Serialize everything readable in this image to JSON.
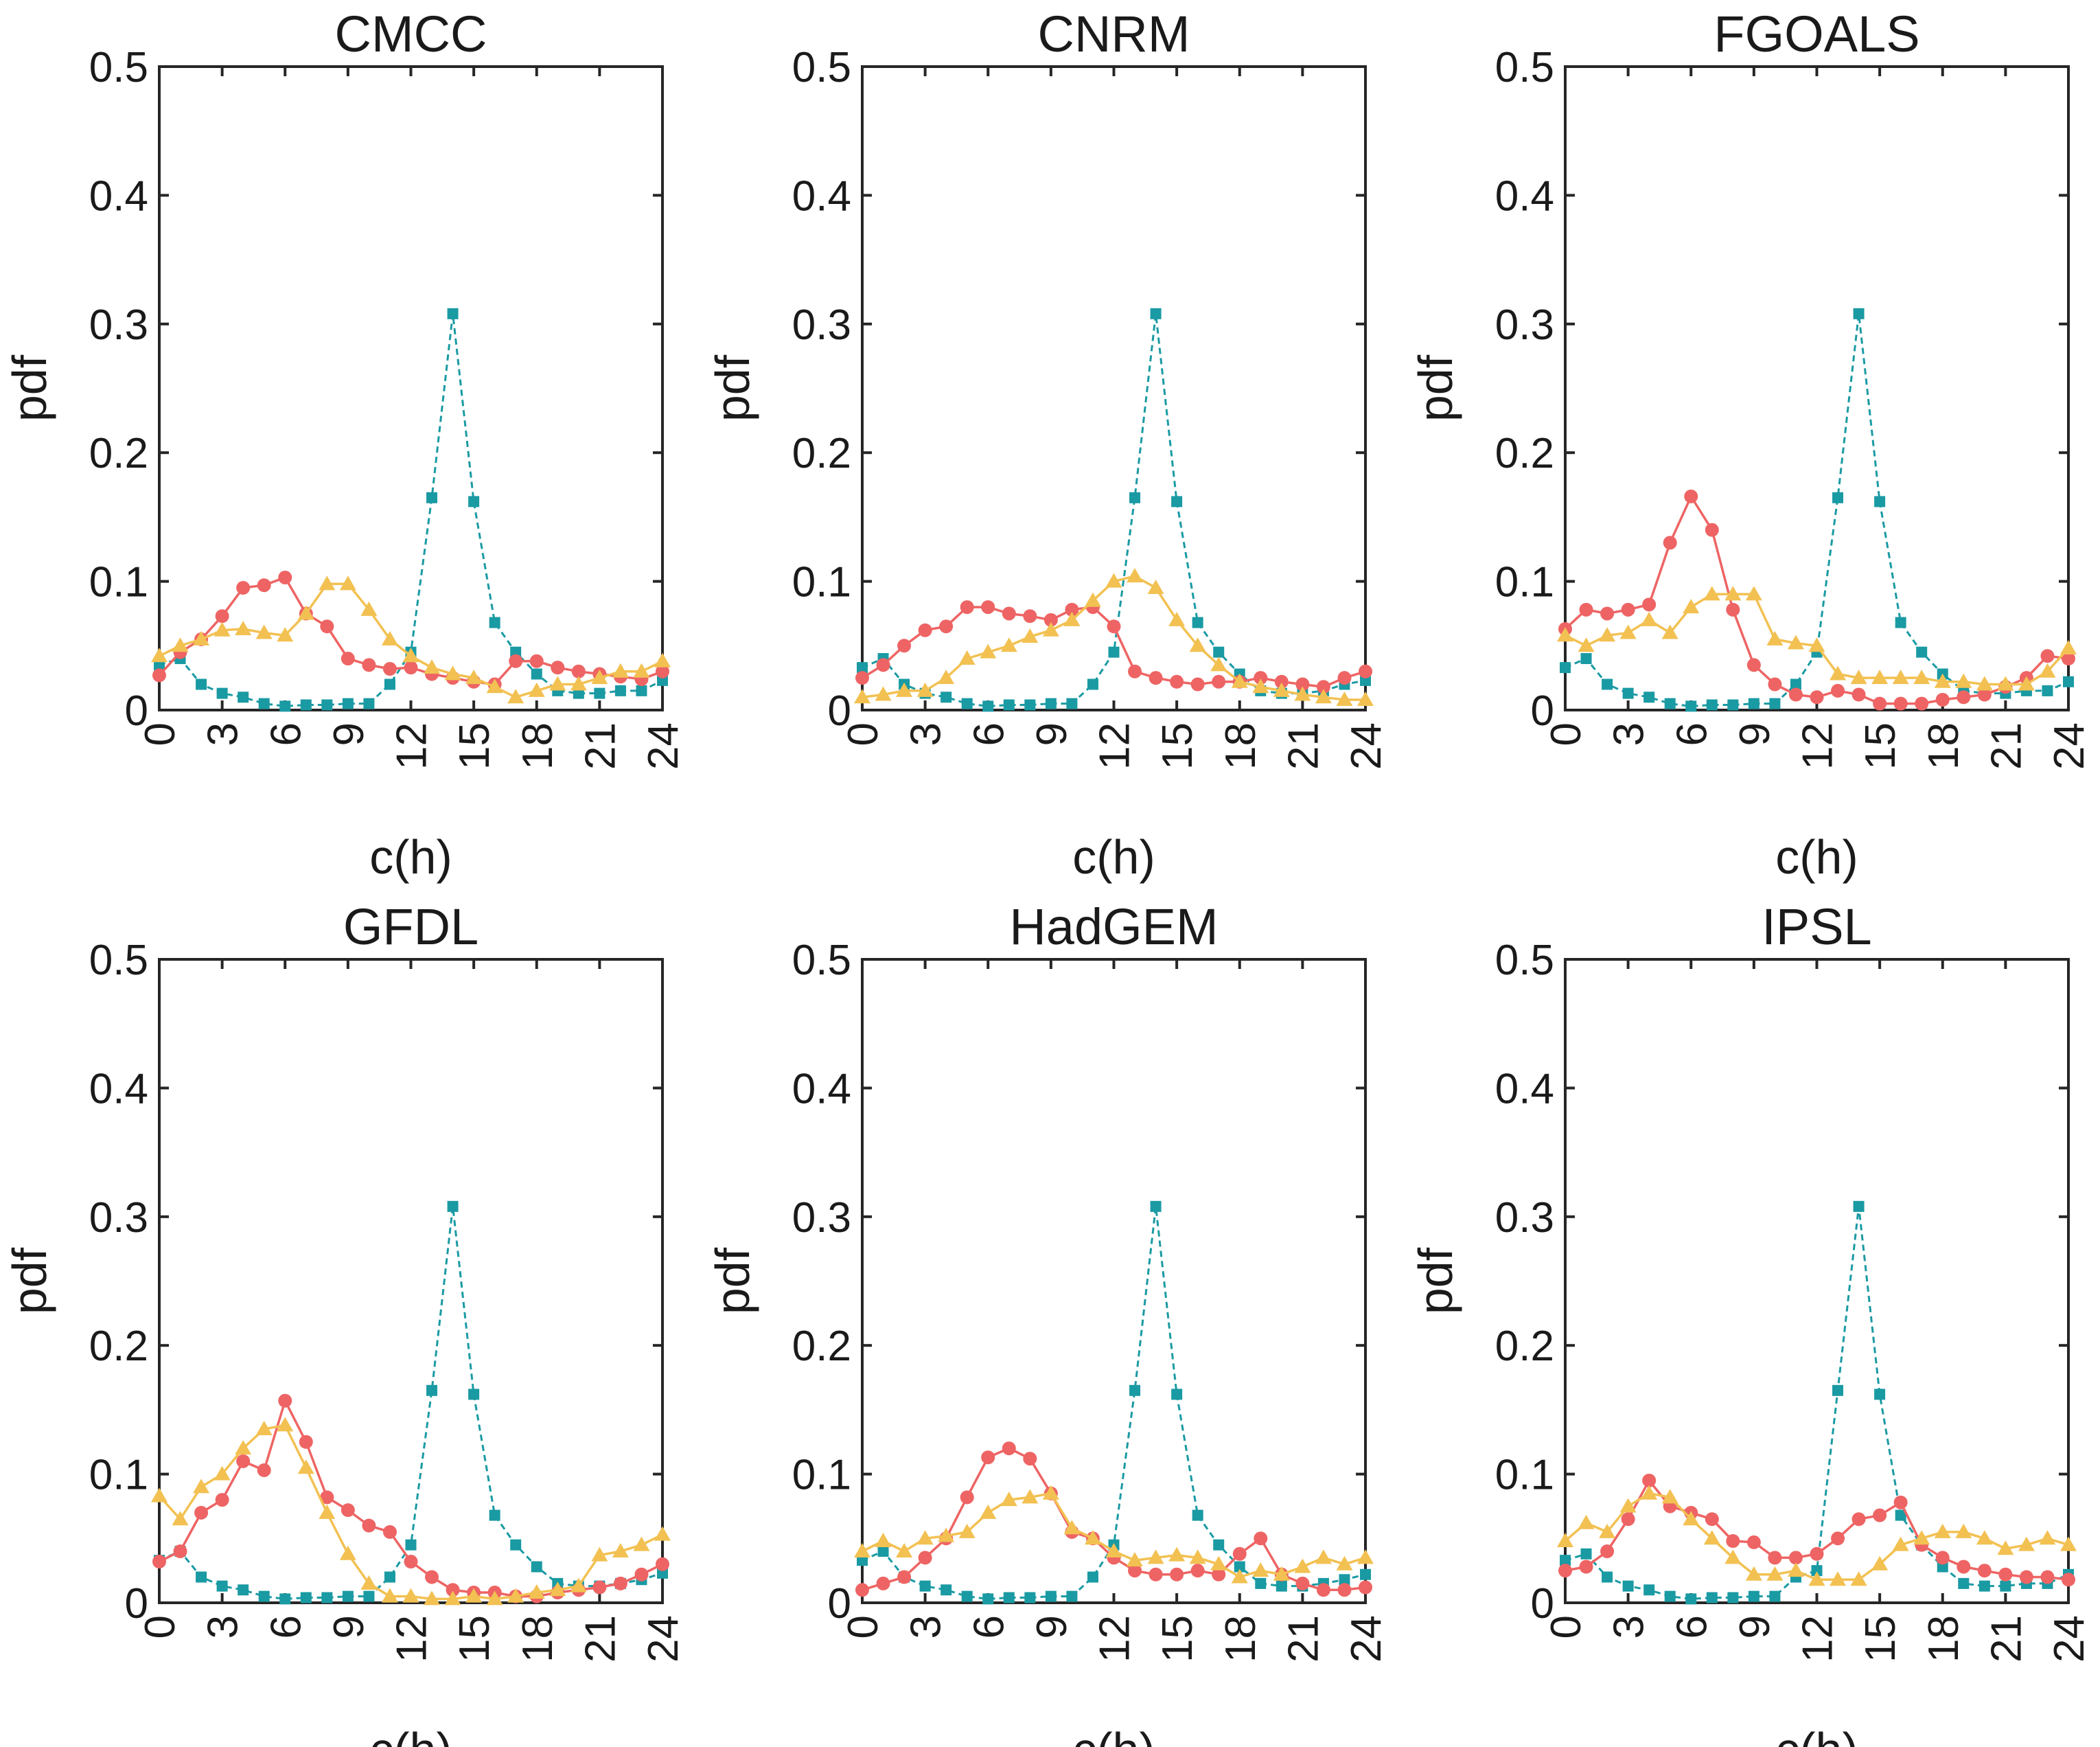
{
  "chart_data": [
    {
      "type": "line",
      "title": "CMCC",
      "xlabel": "c(h)",
      "ylabel": "pdf",
      "xlim": [
        0,
        24
      ],
      "ylim": [
        0,
        0.5
      ],
      "xticks": [
        "0",
        "3",
        "6",
        "9",
        "12",
        "15",
        "18",
        "21",
        "24"
      ],
      "yticks": [
        "0",
        "0.1",
        "0.2",
        "0.3",
        "0.4",
        "0.5"
      ],
      "x": [
        0,
        1,
        2,
        3,
        4,
        5,
        6,
        7,
        8,
        9,
        10,
        11,
        12,
        13,
        14,
        15,
        16,
        17,
        18,
        19,
        20,
        21,
        22,
        23,
        24
      ],
      "series": [
        {
          "name": "teal-squares",
          "color": "#1a9aa3",
          "marker": "square",
          "dashed": true,
          "values": [
            0.035,
            0.04,
            0.02,
            0.013,
            0.01,
            0.005,
            0.003,
            0.004,
            0.004,
            0.005,
            0.005,
            0.02,
            0.045,
            0.165,
            0.308,
            0.162,
            0.068,
            0.045,
            0.028,
            0.015,
            0.013,
            0.013,
            0.015,
            0.015,
            0.023
          ]
        },
        {
          "name": "red-circles",
          "color": "#ee6464",
          "marker": "circle",
          "dashed": false,
          "values": [
            0.027,
            0.045,
            0.055,
            0.073,
            0.095,
            0.097,
            0.103,
            0.075,
            0.065,
            0.04,
            0.035,
            0.032,
            0.033,
            0.028,
            0.025,
            0.022,
            0.02,
            0.038,
            0.038,
            0.033,
            0.03,
            0.028,
            0.026,
            0.024,
            0.03
          ]
        },
        {
          "name": "yellow-triangles",
          "color": "#f2c152",
          "marker": "triangle",
          "dashed": false,
          "values": [
            0.042,
            0.05,
            0.055,
            0.062,
            0.063,
            0.06,
            0.058,
            0.075,
            0.098,
            0.098,
            0.078,
            0.055,
            0.042,
            0.033,
            0.028,
            0.025,
            0.018,
            0.01,
            0.015,
            0.02,
            0.02,
            0.025,
            0.03,
            0.03,
            0.038
          ]
        }
      ]
    },
    {
      "type": "line",
      "title": "CNRM",
      "xlabel": "c(h)",
      "ylabel": "pdf",
      "xlim": [
        0,
        24
      ],
      "ylim": [
        0,
        0.5
      ],
      "xticks": [
        "0",
        "3",
        "6",
        "9",
        "12",
        "15",
        "18",
        "21",
        "24"
      ],
      "yticks": [
        "0",
        "0.1",
        "0.2",
        "0.3",
        "0.4",
        "0.5"
      ],
      "x": [
        0,
        1,
        2,
        3,
        4,
        5,
        6,
        7,
        8,
        9,
        10,
        11,
        12,
        13,
        14,
        15,
        16,
        17,
        18,
        19,
        20,
        21,
        22,
        23,
        24
      ],
      "series": [
        {
          "name": "teal-squares",
          "color": "#1a9aa3",
          "marker": "square",
          "dashed": true,
          "values": [
            0.033,
            0.04,
            0.02,
            0.013,
            0.01,
            0.005,
            0.003,
            0.004,
            0.004,
            0.005,
            0.005,
            0.02,
            0.045,
            0.165,
            0.308,
            0.162,
            0.068,
            0.045,
            0.028,
            0.015,
            0.013,
            0.013,
            0.015,
            0.02,
            0.023
          ]
        },
        {
          "name": "red-circles",
          "color": "#ee6464",
          "marker": "circle",
          "dashed": false,
          "values": [
            0.025,
            0.035,
            0.05,
            0.062,
            0.065,
            0.08,
            0.08,
            0.075,
            0.073,
            0.07,
            0.078,
            0.08,
            0.065,
            0.03,
            0.025,
            0.022,
            0.02,
            0.022,
            0.022,
            0.025,
            0.022,
            0.02,
            0.018,
            0.025,
            0.03
          ]
        },
        {
          "name": "yellow-triangles",
          "color": "#f2c152",
          "marker": "triangle",
          "dashed": false,
          "values": [
            0.01,
            0.012,
            0.015,
            0.015,
            0.025,
            0.04,
            0.045,
            0.05,
            0.057,
            0.062,
            0.07,
            0.085,
            0.1,
            0.104,
            0.095,
            0.07,
            0.05,
            0.035,
            0.022,
            0.018,
            0.015,
            0.012,
            0.01,
            0.008,
            0.008
          ]
        }
      ]
    },
    {
      "type": "line",
      "title": "FGOALS",
      "xlabel": "c(h)",
      "ylabel": "pdf",
      "xlim": [
        0,
        24
      ],
      "ylim": [
        0,
        0.5
      ],
      "xticks": [
        "0",
        "3",
        "6",
        "9",
        "12",
        "15",
        "18",
        "21",
        "24"
      ],
      "yticks": [
        "0",
        "0.1",
        "0.2",
        "0.3",
        "0.4",
        "0.5"
      ],
      "x": [
        0,
        1,
        2,
        3,
        4,
        5,
        6,
        7,
        8,
        9,
        10,
        11,
        12,
        13,
        14,
        15,
        16,
        17,
        18,
        19,
        20,
        21,
        22,
        23,
        24
      ],
      "series": [
        {
          "name": "teal-squares",
          "color": "#1a9aa3",
          "marker": "square",
          "dashed": true,
          "values": [
            0.033,
            0.04,
            0.02,
            0.013,
            0.01,
            0.005,
            0.003,
            0.004,
            0.004,
            0.005,
            0.005,
            0.02,
            0.045,
            0.165,
            0.308,
            0.162,
            0.068,
            0.045,
            0.028,
            0.015,
            0.013,
            0.013,
            0.015,
            0.015,
            0.022
          ]
        },
        {
          "name": "red-circles",
          "color": "#ee6464",
          "marker": "circle",
          "dashed": false,
          "values": [
            0.063,
            0.078,
            0.075,
            0.078,
            0.082,
            0.13,
            0.166,
            0.14,
            0.078,
            0.035,
            0.02,
            0.012,
            0.01,
            0.015,
            0.012,
            0.005,
            0.005,
            0.005,
            0.008,
            0.01,
            0.012,
            0.018,
            0.025,
            0.042,
            0.04
          ]
        },
        {
          "name": "yellow-triangles",
          "color": "#f2c152",
          "marker": "triangle",
          "dashed": false,
          "values": [
            0.058,
            0.05,
            0.058,
            0.06,
            0.07,
            0.06,
            0.08,
            0.09,
            0.09,
            0.09,
            0.055,
            0.052,
            0.05,
            0.028,
            0.025,
            0.025,
            0.025,
            0.025,
            0.022,
            0.022,
            0.02,
            0.02,
            0.02,
            0.03,
            0.048
          ]
        }
      ]
    },
    {
      "type": "line",
      "title": "GFDL",
      "xlabel": "c(h)",
      "ylabel": "pdf",
      "xlim": [
        0,
        24
      ],
      "ylim": [
        0,
        0.5
      ],
      "xticks": [
        "0",
        "3",
        "6",
        "9",
        "12",
        "15",
        "18",
        "21",
        "24"
      ],
      "yticks": [
        "0",
        "0.1",
        "0.2",
        "0.3",
        "0.4",
        "0.5"
      ],
      "x": [
        0,
        1,
        2,
        3,
        4,
        5,
        6,
        7,
        8,
        9,
        10,
        11,
        12,
        13,
        14,
        15,
        16,
        17,
        18,
        19,
        20,
        21,
        22,
        23,
        24
      ],
      "series": [
        {
          "name": "teal-squares",
          "color": "#1a9aa3",
          "marker": "square",
          "dashed": true,
          "values": [
            0.033,
            0.04,
            0.02,
            0.013,
            0.01,
            0.005,
            0.003,
            0.004,
            0.004,
            0.005,
            0.005,
            0.02,
            0.045,
            0.165,
            0.308,
            0.162,
            0.068,
            0.045,
            0.028,
            0.015,
            0.013,
            0.013,
            0.015,
            0.018,
            0.023
          ]
        },
        {
          "name": "red-circles",
          "color": "#ee6464",
          "marker": "circle",
          "dashed": false,
          "values": [
            0.032,
            0.04,
            0.07,
            0.08,
            0.11,
            0.103,
            0.157,
            0.125,
            0.082,
            0.072,
            0.06,
            0.055,
            0.032,
            0.02,
            0.01,
            0.008,
            0.008,
            0.005,
            0.005,
            0.008,
            0.01,
            0.012,
            0.015,
            0.022,
            0.03
          ]
        },
        {
          "name": "yellow-triangles",
          "color": "#f2c152",
          "marker": "triangle",
          "dashed": false,
          "values": [
            0.083,
            0.065,
            0.09,
            0.1,
            0.12,
            0.135,
            0.138,
            0.105,
            0.07,
            0.038,
            0.015,
            0.005,
            0.005,
            0.003,
            0.003,
            0.005,
            0.003,
            0.005,
            0.008,
            0.01,
            0.013,
            0.037,
            0.04,
            0.045,
            0.053
          ]
        }
      ]
    },
    {
      "type": "line",
      "title": "HadGEM",
      "xlabel": "c(h)",
      "ylabel": "pdf",
      "xlim": [
        0,
        24
      ],
      "ylim": [
        0,
        0.5
      ],
      "xticks": [
        "0",
        "3",
        "6",
        "9",
        "12",
        "15",
        "18",
        "21",
        "24"
      ],
      "yticks": [
        "0",
        "0.1",
        "0.2",
        "0.3",
        "0.4",
        "0.5"
      ],
      "x": [
        0,
        1,
        2,
        3,
        4,
        5,
        6,
        7,
        8,
        9,
        10,
        11,
        12,
        13,
        14,
        15,
        16,
        17,
        18,
        19,
        20,
        21,
        22,
        23,
        24
      ],
      "series": [
        {
          "name": "teal-squares",
          "color": "#1a9aa3",
          "marker": "square",
          "dashed": true,
          "values": [
            0.033,
            0.04,
            0.02,
            0.013,
            0.01,
            0.005,
            0.003,
            0.004,
            0.004,
            0.005,
            0.005,
            0.02,
            0.045,
            0.165,
            0.308,
            0.162,
            0.068,
            0.045,
            0.028,
            0.015,
            0.013,
            0.013,
            0.015,
            0.018,
            0.022
          ]
        },
        {
          "name": "red-circles",
          "color": "#ee6464",
          "marker": "circle",
          "dashed": false,
          "values": [
            0.01,
            0.015,
            0.02,
            0.035,
            0.05,
            0.082,
            0.113,
            0.12,
            0.112,
            0.085,
            0.055,
            0.05,
            0.035,
            0.025,
            0.022,
            0.022,
            0.025,
            0.022,
            0.038,
            0.05,
            0.022,
            0.015,
            0.01,
            0.01,
            0.012
          ]
        },
        {
          "name": "yellow-triangles",
          "color": "#f2c152",
          "marker": "triangle",
          "dashed": false,
          "values": [
            0.04,
            0.048,
            0.04,
            0.05,
            0.052,
            0.055,
            0.07,
            0.08,
            0.082,
            0.085,
            0.058,
            0.05,
            0.04,
            0.033,
            0.035,
            0.037,
            0.035,
            0.03,
            0.02,
            0.025,
            0.022,
            0.028,
            0.035,
            0.03,
            0.035
          ]
        }
      ]
    },
    {
      "type": "line",
      "title": "IPSL",
      "xlabel": "c(h)",
      "ylabel": "pdf",
      "xlim": [
        0,
        24
      ],
      "ylim": [
        0,
        0.5
      ],
      "xticks": [
        "0",
        "3",
        "6",
        "9",
        "12",
        "15",
        "18",
        "21",
        "24"
      ],
      "yticks": [
        "0",
        "0.1",
        "0.2",
        "0.3",
        "0.4",
        "0.5"
      ],
      "x": [
        0,
        1,
        2,
        3,
        4,
        5,
        6,
        7,
        8,
        9,
        10,
        11,
        12,
        13,
        14,
        15,
        16,
        17,
        18,
        19,
        20,
        21,
        22,
        23,
        24
      ],
      "series": [
        {
          "name": "teal-squares",
          "color": "#1a9aa3",
          "marker": "square",
          "dashed": true,
          "values": [
            0.033,
            0.038,
            0.02,
            0.013,
            0.01,
            0.005,
            0.003,
            0.004,
            0.004,
            0.005,
            0.005,
            0.02,
            0.025,
            0.165,
            0.308,
            0.162,
            0.068,
            0.045,
            0.028,
            0.015,
            0.013,
            0.013,
            0.015,
            0.015,
            0.022
          ]
        },
        {
          "name": "red-circles",
          "color": "#ee6464",
          "marker": "circle",
          "dashed": false,
          "values": [
            0.025,
            0.028,
            0.04,
            0.065,
            0.095,
            0.075,
            0.07,
            0.065,
            0.048,
            0.047,
            0.035,
            0.035,
            0.038,
            0.05,
            0.065,
            0.068,
            0.078,
            0.045,
            0.035,
            0.028,
            0.025,
            0.022,
            0.02,
            0.02,
            0.018
          ]
        },
        {
          "name": "yellow-triangles",
          "color": "#f2c152",
          "marker": "triangle",
          "dashed": false,
          "values": [
            0.048,
            0.062,
            0.055,
            0.075,
            0.085,
            0.082,
            0.065,
            0.05,
            0.035,
            0.022,
            0.022,
            0.025,
            0.018,
            0.018,
            0.018,
            0.03,
            0.045,
            0.05,
            0.055,
            0.055,
            0.05,
            0.042,
            0.045,
            0.05,
            0.045
          ]
        }
      ]
    }
  ]
}
